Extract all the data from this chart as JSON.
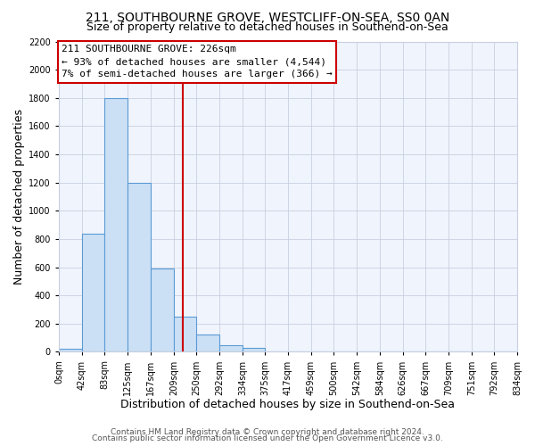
{
  "title": "211, SOUTHBOURNE GROVE, WESTCLIFF-ON-SEA, SS0 0AN",
  "subtitle": "Size of property relative to detached houses in Southend-on-Sea",
  "xlabel": "Distribution of detached houses by size in Southend-on-Sea",
  "ylabel": "Number of detached properties",
  "bin_edges": [
    0,
    42,
    83,
    125,
    167,
    209,
    250,
    292,
    334,
    375,
    417,
    459,
    500,
    542,
    584,
    626,
    667,
    709,
    751,
    792,
    834
  ],
  "bin_labels": [
    "0sqm",
    "42sqm",
    "83sqm",
    "125sqm",
    "167sqm",
    "209sqm",
    "250sqm",
    "292sqm",
    "334sqm",
    "375sqm",
    "417sqm",
    "459sqm",
    "500sqm",
    "542sqm",
    "584sqm",
    "626sqm",
    "667sqm",
    "709sqm",
    "751sqm",
    "792sqm",
    "834sqm"
  ],
  "counts": [
    20,
    840,
    1800,
    1200,
    590,
    250,
    125,
    45,
    25,
    0,
    0,
    0,
    0,
    0,
    0,
    0,
    0,
    0,
    0,
    0
  ],
  "bar_facecolor": "#cce0f5",
  "bar_edgecolor": "#5b9bd5",
  "vline_x": 226,
  "vline_color": "#cc0000",
  "annotation_title": "211 SOUTHBOURNE GROVE: 226sqm",
  "annotation_line1": "← 93% of detached houses are smaller (4,544)",
  "annotation_line2": "7% of semi-detached houses are larger (366) →",
  "annotation_box_edgecolor": "#cc0000",
  "ylim": [
    0,
    2200
  ],
  "yticks": [
    0,
    200,
    400,
    600,
    800,
    1000,
    1200,
    1400,
    1600,
    1800,
    2000,
    2200
  ],
  "footer1": "Contains HM Land Registry data © Crown copyright and database right 2024.",
  "footer2": "Contains public sector information licensed under the Open Government Licence v3.0.",
  "background_color": "#ffffff",
  "plot_bg_color": "#f0f4fc",
  "grid_color": "#c8cfe0",
  "title_fontsize": 10,
  "subtitle_fontsize": 9,
  "axis_label_fontsize": 9,
  "tick_fontsize": 7,
  "annotation_fontsize": 8,
  "footer_fontsize": 6.5
}
